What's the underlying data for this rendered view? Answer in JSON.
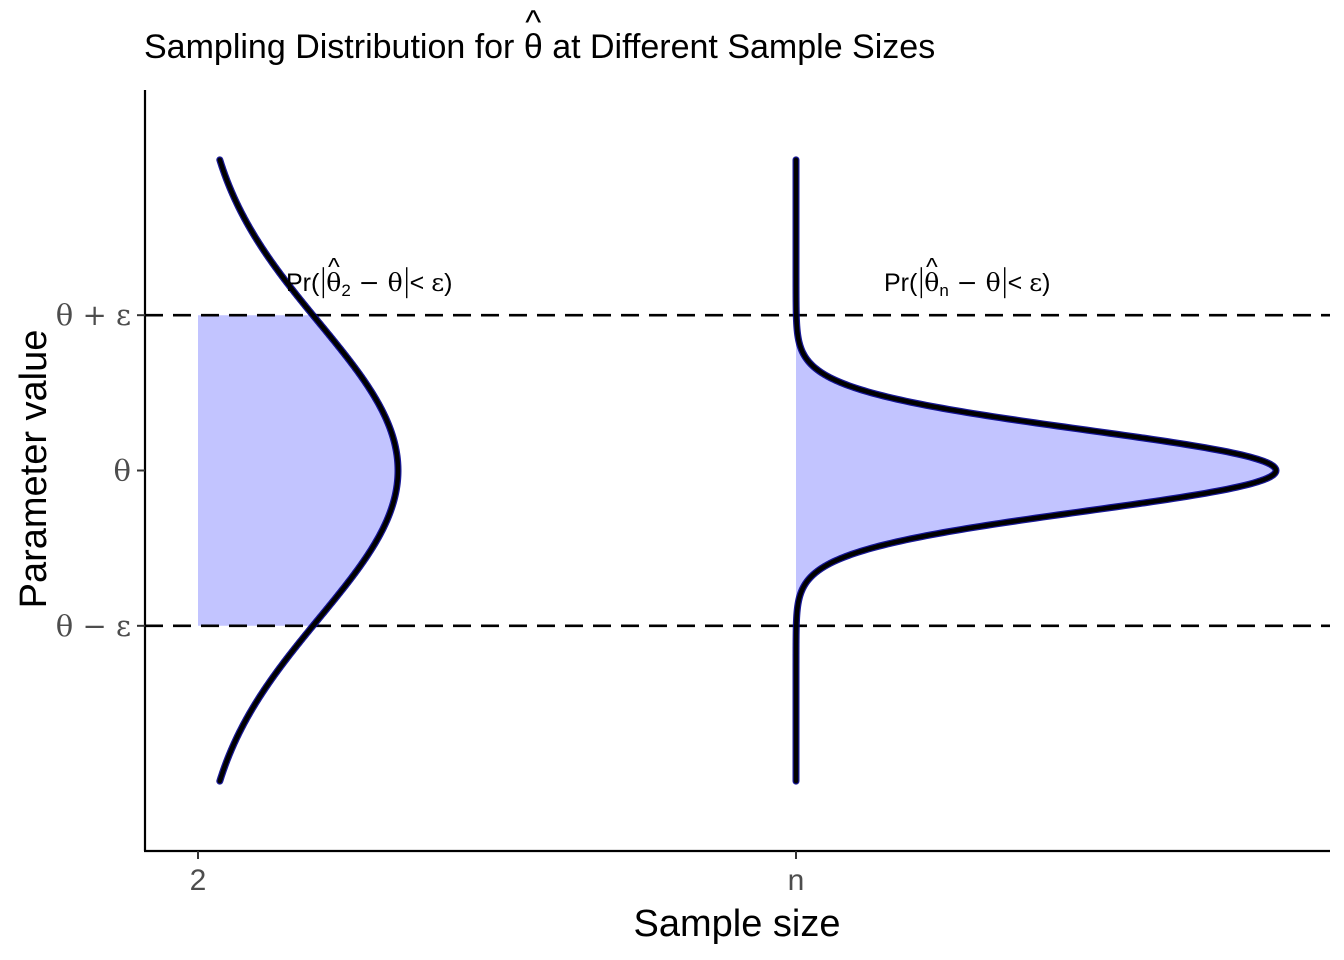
{
  "chart_data": {
    "type": "area",
    "title": {
      "prefix": "Sampling Distribution for ",
      "symbol": "θ",
      "hat": "^",
      "suffix": " at Different Sample Sizes"
    },
    "xlabel": "Sample size",
    "ylabel": "Parameter value",
    "x_ticks": [
      "2",
      "n"
    ],
    "y_ticks": [
      {
        "label": "θ + ε",
        "value": 1
      },
      {
        "label": "θ",
        "value": 0
      },
      {
        "label": "θ − ε",
        "value": -1
      }
    ],
    "ylim": [
      -2.45,
      2.45
    ],
    "reference_lines": [
      1,
      -1
    ],
    "fill_color": "#c2c4ff",
    "fill_edge_color": "#00008b",
    "curve_color": "#000000",
    "series": [
      {
        "category": "2",
        "sd": 0.95,
        "y_range": [
          -2,
          2
        ],
        "peak_width": 0.2,
        "shade_interval": [
          -1,
          1
        ],
        "annotation": {
          "pre": "Pr(",
          "theta": "θ",
          "hat": "^",
          "sub": "2",
          "mid": " − θ",
          "post": " < ε)"
        }
      },
      {
        "category": "n",
        "sd": 0.26,
        "y_range": [
          -2,
          2
        ],
        "peak_width": 0.48,
        "shade_interval": [
          -1,
          1
        ],
        "annotation": {
          "pre": "Pr(",
          "theta": "θ",
          "hat": "^",
          "sub": "n",
          "mid": " − θ",
          "post": " < ε)"
        }
      }
    ]
  }
}
